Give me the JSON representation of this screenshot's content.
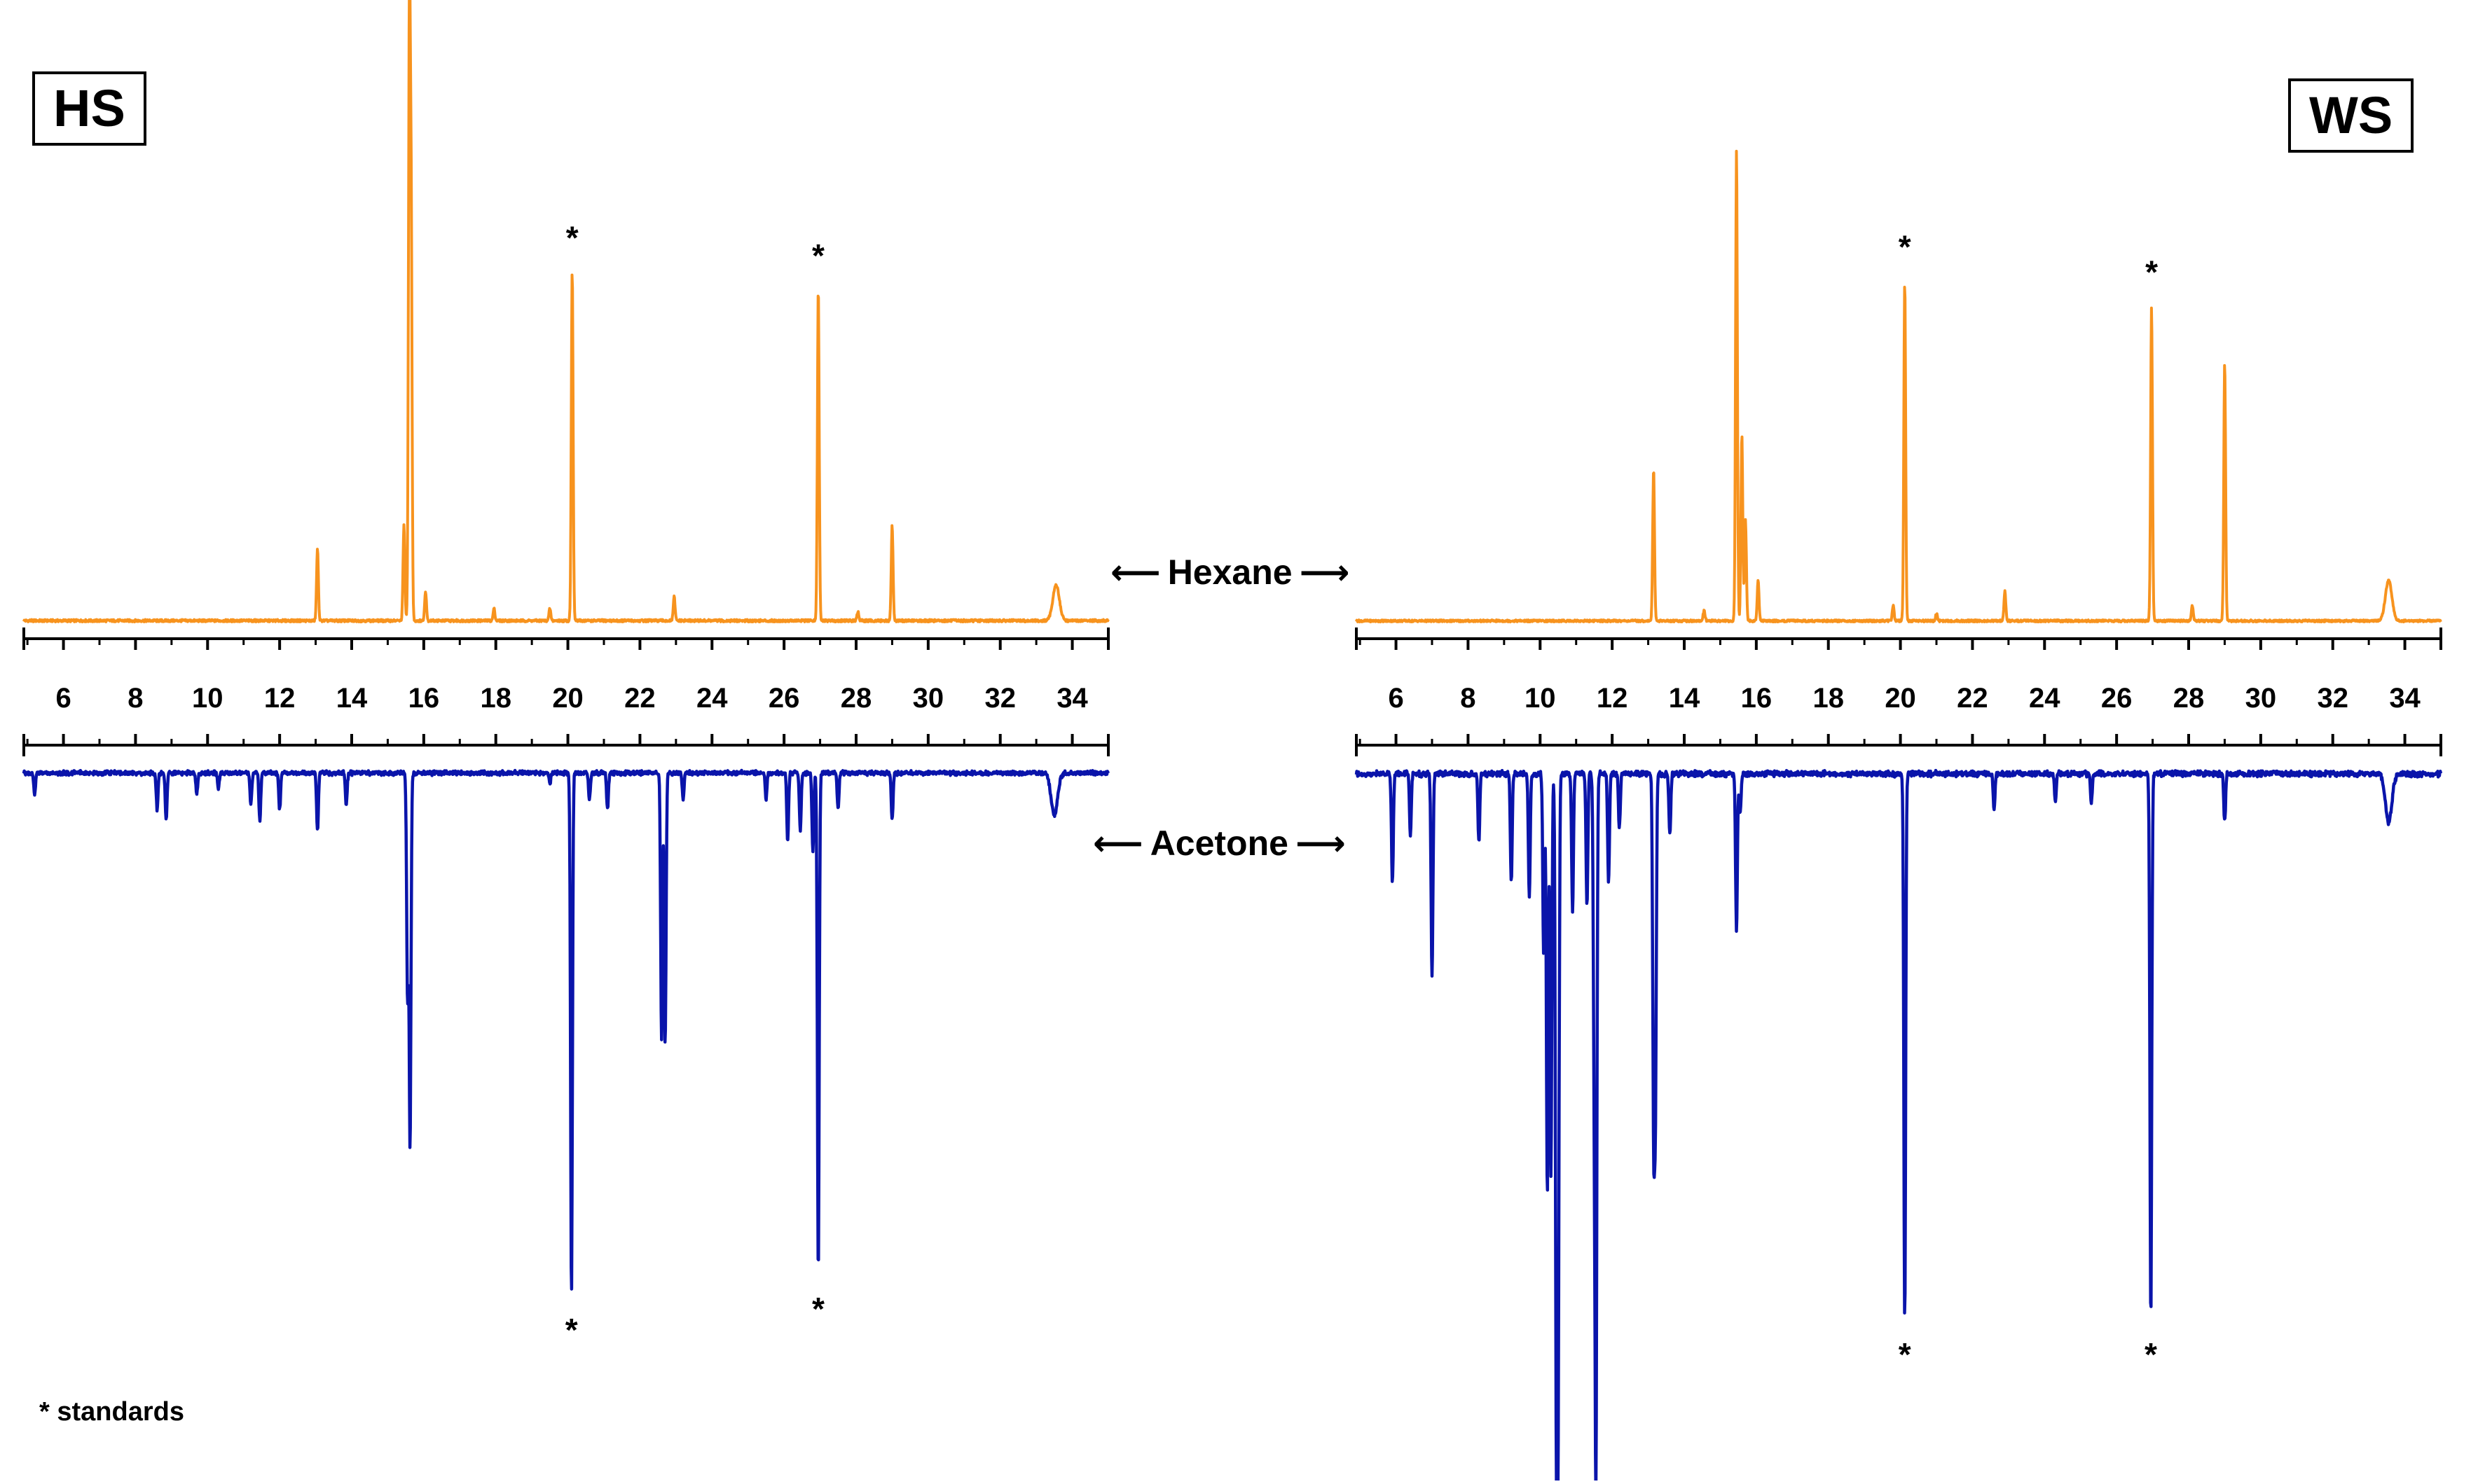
{
  "legend_note": "* standards",
  "solvent_labels": {
    "hexane": "Hexane",
    "acetone": "Acetone",
    "arrow_left": "⟵",
    "arrow_right": "⟶"
  },
  "colors": {
    "hexane": "#F7931E",
    "acetone": "#0A14AA",
    "axis": "#000000"
  },
  "chart_data": [
    {
      "type": "line",
      "panel": "HS",
      "title": "HS",
      "xlabel": "",
      "ylabel": "",
      "xlim": [
        4.9,
        35.0
      ],
      "ticks": [
        6,
        8,
        10,
        12,
        14,
        16,
        18,
        20,
        22,
        24,
        26,
        28,
        30,
        32,
        34
      ],
      "standard_marker": "*",
      "series": [
        {
          "name": "Hexane",
          "direction": "up",
          "peaks": [
            [
              13.05,
              0.12
            ],
            [
              15.45,
              0.16
            ],
            [
              15.6,
              1.0
            ],
            [
              15.65,
              0.66
            ],
            [
              16.05,
              0.05
            ],
            [
              17.95,
              0.02
            ],
            [
              19.5,
              0.02
            ],
            [
              20.12,
              0.59
            ],
            [
              22.95,
              0.04
            ],
            [
              26.95,
              0.56
            ],
            [
              28.05,
              0.015
            ],
            [
              29.0,
              0.16
            ],
            [
              33.55,
              0.06
            ]
          ],
          "standards": [
            20.12,
            26.95
          ]
        },
        {
          "name": "Acetone",
          "direction": "down",
          "peaks": [
            [
              5.2,
              0.04
            ],
            [
              8.6,
              0.07
            ],
            [
              8.85,
              0.09
            ],
            [
              9.7,
              0.04
            ],
            [
              10.3,
              0.03
            ],
            [
              11.2,
              0.06
            ],
            [
              11.45,
              0.09
            ],
            [
              12.0,
              0.07
            ],
            [
              13.05,
              0.11
            ],
            [
              13.85,
              0.06
            ],
            [
              15.55,
              0.43
            ],
            [
              15.62,
              0.71
            ],
            [
              19.5,
              0.02
            ],
            [
              20.1,
              1.0
            ],
            [
              20.6,
              0.05
            ],
            [
              21.1,
              0.07
            ],
            [
              22.6,
              0.51
            ],
            [
              22.7,
              0.52
            ],
            [
              23.2,
              0.05
            ],
            [
              25.5,
              0.05
            ],
            [
              26.1,
              0.13
            ],
            [
              26.45,
              0.11
            ],
            [
              26.8,
              0.15
            ],
            [
              26.95,
              0.96
            ],
            [
              27.5,
              0.07
            ],
            [
              29.0,
              0.09
            ],
            [
              33.5,
              0.08
            ]
          ],
          "standards": [
            20.1,
            26.95
          ]
        }
      ]
    },
    {
      "type": "line",
      "panel": "WS",
      "title": "WS",
      "xlabel": "",
      "ylabel": "",
      "xlim": [
        4.9,
        35.0
      ],
      "ticks": [
        6,
        8,
        10,
        12,
        14,
        16,
        18,
        20,
        22,
        24,
        26,
        28,
        30,
        32,
        34
      ],
      "standard_marker": "*",
      "series": [
        {
          "name": "Hexane",
          "direction": "up",
          "peaks": [
            [
              13.15,
              0.3
            ],
            [
              14.55,
              0.02
            ],
            [
              15.45,
              0.93
            ],
            [
              15.6,
              0.37
            ],
            [
              15.7,
              0.2
            ],
            [
              16.05,
              0.08
            ],
            [
              19.8,
              0.03
            ],
            [
              20.12,
              0.67
            ],
            [
              21.0,
              0.015
            ],
            [
              22.9,
              0.06
            ],
            [
              26.97,
              0.62
            ],
            [
              28.1,
              0.03
            ],
            [
              29.0,
              0.51
            ],
            [
              33.55,
              0.08
            ]
          ],
          "standards": [
            20.12,
            26.97
          ]
        },
        {
          "name": "Acetone",
          "direction": "down",
          "peaks": [
            [
              5.9,
              0.16
            ],
            [
              6.4,
              0.09
            ],
            [
              7.0,
              0.3
            ],
            [
              8.3,
              0.1
            ],
            [
              9.2,
              0.16
            ],
            [
              9.7,
              0.18
            ],
            [
              10.1,
              0.27
            ],
            [
              10.2,
              0.62
            ],
            [
              10.3,
              0.59
            ],
            [
              10.45,
              0.9
            ],
            [
              10.5,
              0.9
            ],
            [
              10.9,
              0.2
            ],
            [
              11.3,
              0.19
            ],
            [
              11.5,
              0.4
            ],
            [
              11.55,
              1.0
            ],
            [
              11.9,
              0.16
            ],
            [
              12.2,
              0.08
            ],
            [
              13.15,
              0.5
            ],
            [
              13.2,
              0.47
            ],
            [
              13.6,
              0.09
            ],
            [
              15.45,
              0.23
            ],
            [
              15.55,
              0.06
            ],
            [
              20.12,
              0.8
            ],
            [
              22.6,
              0.05
            ],
            [
              24.3,
              0.04
            ],
            [
              25.3,
              0.04
            ],
            [
              26.95,
              0.8
            ],
            [
              29.0,
              0.07
            ],
            [
              33.55,
              0.07
            ]
          ],
          "standards": [
            20.12,
            26.95
          ]
        }
      ]
    }
  ]
}
